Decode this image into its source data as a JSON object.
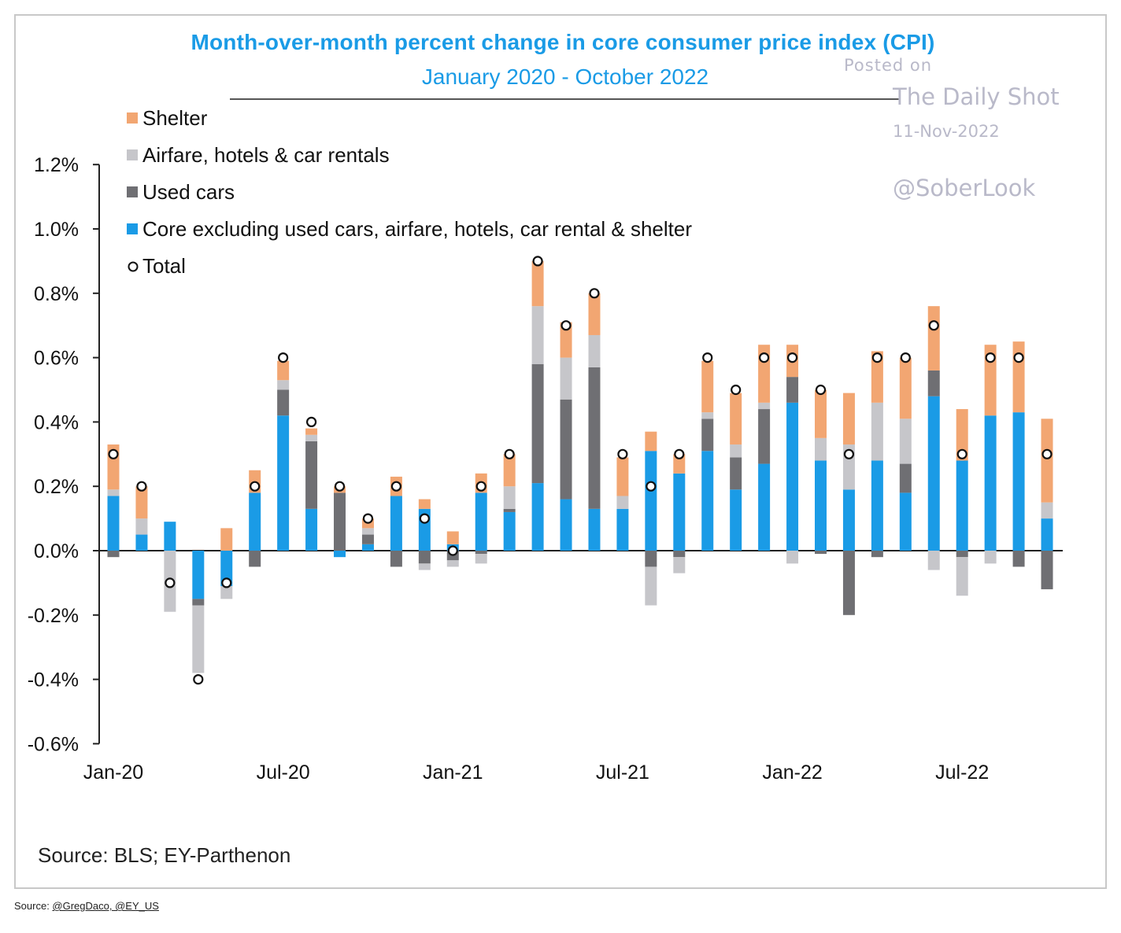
{
  "chart_data": {
    "type": "bar",
    "stacked": true,
    "title": "Month-over-month  percent change in core consumer price index (CPI)",
    "subtitle": "January 2020 - October 2022",
    "ylim": [
      -0.6,
      1.2
    ],
    "yticks": [
      "1.2%",
      "1.0%",
      "0.8%",
      "0.6%",
      "0.4%",
      "0.2%",
      "0.0%",
      "-0.2%",
      "-0.4%",
      "-0.6%"
    ],
    "ytick_values": [
      1.2,
      1.0,
      0.8,
      0.6,
      0.4,
      0.2,
      0.0,
      -0.2,
      -0.4,
      -0.6
    ],
    "xticks": [
      {
        "label": "Jan-20",
        "index": 0
      },
      {
        "label": "Jul-20",
        "index": 6
      },
      {
        "label": "Jan-21",
        "index": 12
      },
      {
        "label": "Jul-21",
        "index": 18
      },
      {
        "label": "Jan-22",
        "index": 24
      },
      {
        "label": "Jul-22",
        "index": 30
      }
    ],
    "categories": [
      "Jan-20",
      "Feb-20",
      "Mar-20",
      "Apr-20",
      "May-20",
      "Jun-20",
      "Jul-20",
      "Aug-20",
      "Sep-20",
      "Oct-20",
      "Nov-20",
      "Dec-20",
      "Jan-21",
      "Feb-21",
      "Mar-21",
      "Apr-21",
      "May-21",
      "Jun-21",
      "Jul-21",
      "Aug-21",
      "Sep-21",
      "Oct-21",
      "Nov-21",
      "Dec-21",
      "Jan-22",
      "Feb-22",
      "Mar-22",
      "Apr-22",
      "May-22",
      "Jun-22",
      "Jul-22",
      "Aug-22",
      "Sep-22",
      "Oct-22"
    ],
    "series": [
      {
        "name": "Core excluding used cars, airfare, hotels, car rental & shelter",
        "color": "#1a9be6",
        "values": [
          0.17,
          0.05,
          0.09,
          -0.15,
          -0.11,
          0.18,
          0.42,
          0.13,
          -0.02,
          0.02,
          0.17,
          0.13,
          0.02,
          0.18,
          0.12,
          0.21,
          0.16,
          0.13,
          0.13,
          0.31,
          0.24,
          0.31,
          0.19,
          0.27,
          0.46,
          0.28,
          0.19,
          0.28,
          0.18,
          0.48,
          0.28,
          0.42,
          0.43,
          0.1
        ]
      },
      {
        "name": "Used cars",
        "color": "#6f6f73",
        "values": [
          -0.02,
          0.0,
          0.0,
          -0.02,
          0.0,
          -0.05,
          0.08,
          0.21,
          0.18,
          0.03,
          -0.05,
          -0.04,
          -0.03,
          -0.01,
          0.01,
          0.37,
          0.31,
          0.44,
          0.0,
          -0.05,
          -0.02,
          0.1,
          0.1,
          0.17,
          0.08,
          -0.01,
          -0.2,
          -0.02,
          0.09,
          0.08,
          -0.02,
          0.0,
          -0.05,
          -0.12
        ]
      },
      {
        "name": "Airfare, hotels & car rentals",
        "color": "#c6c6ca",
        "values": [
          0.02,
          0.05,
          -0.19,
          -0.21,
          -0.04,
          0.0,
          0.03,
          0.02,
          0.0,
          0.02,
          0.0,
          -0.02,
          -0.02,
          -0.03,
          0.07,
          0.18,
          0.13,
          0.1,
          0.04,
          -0.12,
          -0.05,
          0.02,
          0.04,
          0.02,
          -0.04,
          0.07,
          0.14,
          0.18,
          0.14,
          -0.06,
          -0.12,
          -0.04,
          0.0,
          0.05
        ]
      },
      {
        "name": "Shelter",
        "color": "#f2a672",
        "values": [
          0.14,
          0.1,
          0.0,
          0.0,
          0.07,
          0.07,
          0.06,
          0.02,
          0.02,
          0.03,
          0.06,
          0.03,
          0.04,
          0.06,
          0.1,
          0.14,
          0.11,
          0.13,
          0.12,
          0.06,
          0.06,
          0.16,
          0.16,
          0.18,
          0.1,
          0.15,
          0.16,
          0.16,
          0.19,
          0.2,
          0.16,
          0.22,
          0.22,
          0.26
        ]
      },
      {
        "name": "Total",
        "type": "marker",
        "values": [
          0.3,
          0.2,
          -0.1,
          -0.4,
          -0.1,
          0.2,
          0.6,
          0.4,
          0.2,
          0.1,
          0.2,
          0.1,
          0.0,
          0.2,
          0.3,
          0.9,
          0.7,
          0.8,
          0.3,
          0.2,
          0.3,
          0.6,
          0.5,
          0.6,
          0.6,
          0.5,
          0.3,
          0.6,
          0.6,
          0.7,
          0.3,
          0.6,
          0.6,
          0.3
        ]
      }
    ],
    "legend": {
      "placement": "top-left",
      "entries": [
        {
          "label": "Shelter",
          "color": "#f2a672",
          "marker": "square"
        },
        {
          "label": "Airfare, hotels & car rentals",
          "color": "#c6c6ca",
          "marker": "square"
        },
        {
          "label": "Used cars",
          "color": "#6f6f73",
          "marker": "square"
        },
        {
          "label": "Core excluding used cars, airfare, hotels, car rental & shelter",
          "color": "#1a9be6",
          "marker": "square"
        },
        {
          "label": "Total",
          "color": "#ffffff",
          "marker": "circle"
        }
      ]
    },
    "grid": false,
    "source": "Source: BLS; EY-Parthenon"
  },
  "watermark": {
    "posted_on": "Posted on",
    "publisher": "The Daily Shot",
    "date": "11-Nov-2022",
    "handle": "@SoberLook"
  },
  "footer": {
    "source_prefix": "Source: ",
    "links": "@GregDaco, @EY_US"
  }
}
